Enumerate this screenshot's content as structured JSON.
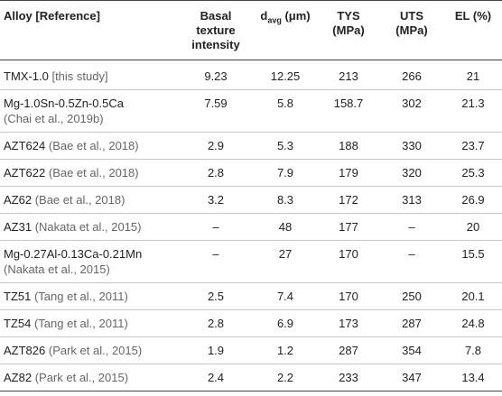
{
  "headers": {
    "alloy": "Alloy [Reference]",
    "basal": "Basal texture intensity",
    "davg_main": "d",
    "davg_sub": "avg",
    "davg_unit": " (μm)",
    "tys": "TYS (MPa)",
    "uts": "UTS (MPa)",
    "el": "EL (%)"
  },
  "rows": [
    {
      "alloy": "TMX-1.0",
      "ref": " [this study]",
      "basal": "9.23",
      "davg": "12.25",
      "tys": "213",
      "uts": "266",
      "el": "21"
    },
    {
      "alloy": "Mg-1.0Sn-0.5Zn-0.5Ca",
      "ref": "(Chai et al., 2019b)",
      "basal": "7.59",
      "davg": "5.8",
      "tys": "158.7",
      "uts": "302",
      "el": "21.3"
    },
    {
      "alloy": "AZT624",
      "ref": " (Bae et al., 2018)",
      "basal": "2.9",
      "davg": "5.3",
      "tys": "188",
      "uts": "330",
      "el": "23.7"
    },
    {
      "alloy": "AZT622",
      "ref": " (Bae et al., 2018)",
      "basal": "2.8",
      "davg": "7.9",
      "tys": "179",
      "uts": "320",
      "el": "25.3"
    },
    {
      "alloy": "AZ62",
      "ref": " (Bae et al., 2018)",
      "basal": "3.2",
      "davg": "8.3",
      "tys": "172",
      "uts": "313",
      "el": "26.9"
    },
    {
      "alloy": "AZ31",
      "ref": " (Nakata et al., 2015)",
      "basal": "–",
      "davg": "48",
      "tys": "177",
      "uts": "–",
      "el": "20"
    },
    {
      "alloy": "Mg-0.27Al-0.13Ca-0.21Mn",
      "ref": "(Nakata et al., 2015)",
      "basal": "–",
      "davg": "27",
      "tys": "170",
      "uts": "–",
      "el": "15.5"
    },
    {
      "alloy": "TZ51",
      "ref": " (Tang et al., 2011)",
      "basal": "2.5",
      "davg": "7.4",
      "tys": "170",
      "uts": "250",
      "el": "20.1"
    },
    {
      "alloy": "TZ54",
      "ref": " (Tang et al., 2011)",
      "basal": "2.8",
      "davg": "6.9",
      "tys": "173",
      "uts": "287",
      "el": "24.8"
    },
    {
      "alloy": "AZT826",
      "ref": " (Park et al., 2015)",
      "basal": "1.9",
      "davg": "1.2",
      "tys": "287",
      "uts": "354",
      "el": "7.8"
    },
    {
      "alloy": "AZ82",
      "ref": " (Park et al., 2015)",
      "basal": "2.4",
      "davg": "2.2",
      "tys": "233",
      "uts": "347",
      "el": "13.4"
    }
  ]
}
